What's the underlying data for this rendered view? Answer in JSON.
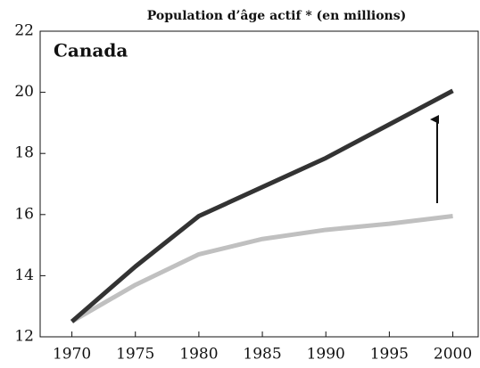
{
  "chart_data": {
    "type": "line",
    "title": "Population d’âge actif * (en millions)",
    "annotation": "Canada",
    "x": [
      1970,
      1975,
      1980,
      1985,
      1990,
      1995,
      2000
    ],
    "series": [
      {
        "color": "#333333",
        "values": [
          12.5,
          14.3,
          15.95,
          16.9,
          17.85,
          18.95,
          20.05
        ]
      },
      {
        "color": "#c0c0c0",
        "values": [
          12.5,
          13.7,
          14.7,
          15.2,
          15.5,
          15.7,
          15.95
        ]
      }
    ],
    "xlim": [
      1967.5,
      2002
    ],
    "ylim": [
      12,
      22
    ],
    "xticks": [
      1970,
      1975,
      1980,
      1985,
      1990,
      1995,
      2000
    ],
    "yticks": [
      12,
      14,
      16,
      18,
      20,
      22
    ]
  }
}
